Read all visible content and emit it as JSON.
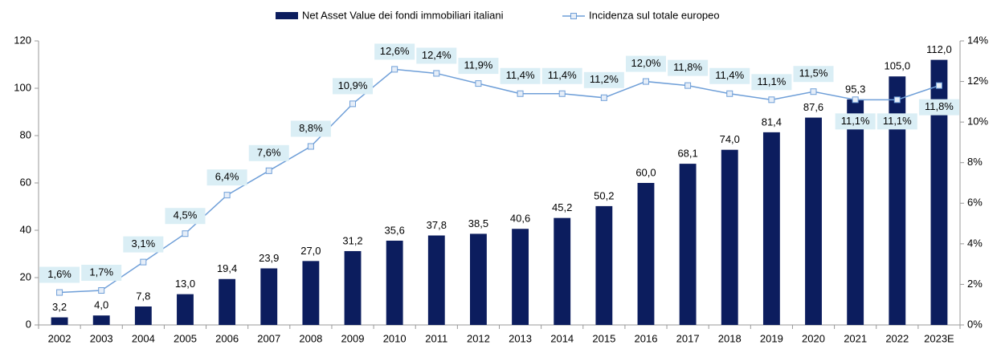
{
  "chart_data": {
    "type": "bar-line",
    "categories": [
      "2002",
      "2003",
      "2004",
      "2005",
      "2006",
      "2007",
      "2008",
      "2009",
      "2010",
      "2011",
      "2012",
      "2013",
      "2014",
      "2015",
      "2016",
      "2017",
      "2018",
      "2019",
      "2020",
      "2021",
      "2022",
      "2023E"
    ],
    "series": [
      {
        "name": "Net Asset Value dei fondi immobiliari italiani",
        "type": "bar",
        "color": "#0c1d5e",
        "values": [
          3.2,
          4.0,
          7.8,
          13.0,
          19.4,
          23.9,
          27.0,
          31.2,
          35.6,
          37.8,
          38.5,
          40.6,
          45.2,
          50.2,
          60.0,
          68.1,
          74.0,
          81.4,
          87.6,
          95.3,
          105.0,
          112.0
        ],
        "value_labels": [
          "3,2",
          "4,0",
          "7,8",
          "13,0",
          "19,4",
          "23,9",
          "27,0",
          "31,2",
          "35,6",
          "37,8",
          "38,5",
          "40,6",
          "45,2",
          "50,2",
          "60,0",
          "68,1",
          "74,0",
          "81,4",
          "87,6",
          "95,3",
          "105,0",
          "112,0"
        ]
      },
      {
        "name": "Incidenza sul totale europeo",
        "type": "line",
        "axis": "y2",
        "color": "#6f9fd8",
        "values": [
          1.6,
          1.7,
          3.1,
          4.5,
          6.4,
          7.6,
          8.8,
          10.9,
          12.6,
          12.4,
          11.9,
          11.4,
          11.4,
          11.2,
          12.0,
          11.8,
          11.4,
          11.1,
          11.5,
          11.1,
          11.1,
          11.8
        ],
        "value_labels": [
          "1,6%",
          "1,7%",
          "3,1%",
          "4,5%",
          "6,4%",
          "7,6%",
          "8,8%",
          "10,9%",
          "12,6%",
          "12,4%",
          "11,9%",
          "11,4%",
          "11,4%",
          "11,2%",
          "12,0%",
          "11,8%",
          "11,4%",
          "11,1%",
          "11,5%",
          "11,1%",
          "11,1%",
          "11,8%"
        ]
      }
    ],
    "ylim": [
      0,
      120
    ],
    "yticks": [
      0,
      20,
      40,
      60,
      80,
      100,
      120
    ],
    "y2lim": [
      0,
      14
    ],
    "y2ticks": [
      {
        "value": 0,
        "label": "0%"
      },
      {
        "value": 2,
        "label": "2%"
      },
      {
        "value": 4,
        "label": "4%"
      },
      {
        "value": 6,
        "label": "6%"
      },
      {
        "value": 8,
        "label": "8%"
      },
      {
        "value": 10,
        "label": "10%"
      },
      {
        "value": 12,
        "label": "12%"
      },
      {
        "value": 14,
        "label": "14%"
      }
    ],
    "legend": "top",
    "grid": false
  }
}
